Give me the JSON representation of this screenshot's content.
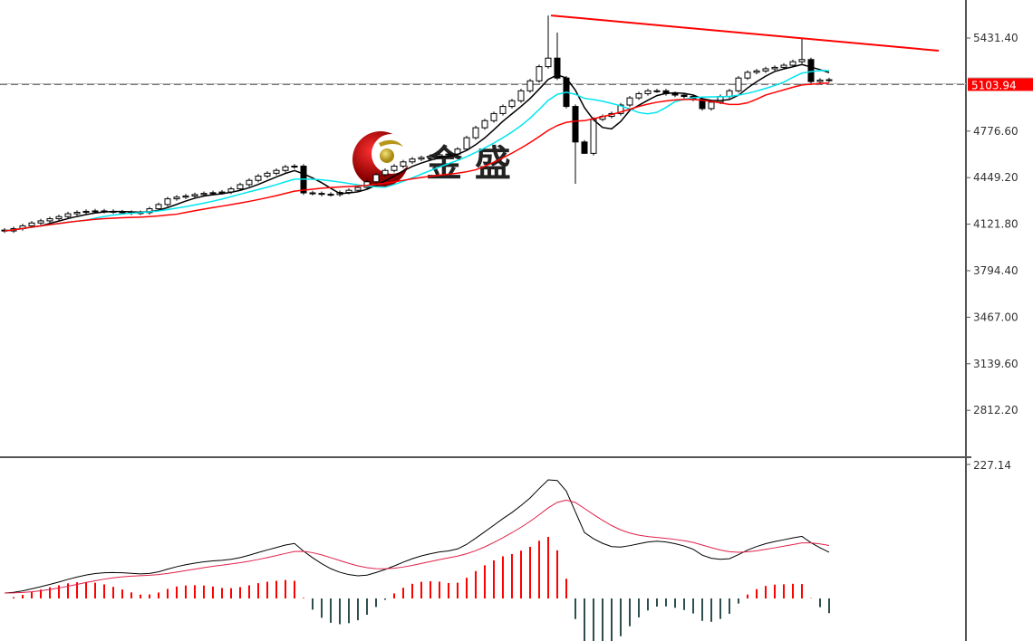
{
  "chart_data": {
    "type": "candlestick",
    "title": "",
    "price_axis": {
      "ticks": [
        "5431.40",
        "4776.60",
        "4449.20",
        "4121.80",
        "3794.40",
        "3467.00",
        "3139.60",
        "2812.20"
      ],
      "tick_values": [
        5431.4,
        4776.6,
        4449.2,
        4121.8,
        3794.4,
        3467.0,
        3139.6,
        2812.2
      ],
      "current_price_label": "5103.94",
      "current_price": 5103.94,
      "ask_price": 5110
    },
    "closes": [
      4074,
      4090,
      4110,
      4130,
      4145,
      4160,
      4175,
      4195,
      4205,
      4212,
      4215,
      4212,
      4208,
      4205,
      4200,
      4203,
      4230,
      4260,
      4300,
      4312,
      4320,
      4330,
      4338,
      4343,
      4348,
      4370,
      4400,
      4430,
      4460,
      4480,
      4500,
      4525,
      4530,
      4342,
      4338,
      4332,
      4330,
      4345,
      4360,
      4380,
      4420,
      4470,
      4500,
      4530,
      4560,
      4580,
      4590,
      4600,
      4610,
      4615,
      4650,
      4730,
      4800,
      4850,
      4900,
      4950,
      4990,
      5060,
      5130,
      5230,
      5290,
      5150,
      4950,
      4700,
      4620,
      4860,
      4880,
      4900,
      4960,
      5010,
      5040,
      5060,
      5060,
      5040,
      5030,
      5020,
      5000,
      4935,
      4980,
      5020,
      5060,
      5150,
      5190,
      5200,
      5215,
      5225,
      5240,
      5265,
      5280,
      5125,
      5135,
      5138
    ],
    "first_open": 4080,
    "wick_extremes": {
      "60": {
        "high": 5590
      },
      "61": {
        "high": 5470
      },
      "63": {
        "low": 4406
      },
      "64": {
        "low": 4620
      },
      "88": {
        "high": 5431
      }
    },
    "moving_averages": [
      {
        "period": 5,
        "color": "#000000"
      },
      {
        "period": 10,
        "color": "#00e5ee"
      },
      {
        "period": 20,
        "color": "#ff0000"
      }
    ],
    "trendline": {
      "from_index": 60,
      "from_price": 5590,
      "to_price": 5342,
      "color": "#ff0000"
    },
    "indicator": {
      "type": "macd",
      "top_label": "227.14",
      "fast": 12,
      "slow": 26,
      "signal": 9,
      "macd_color": "#000000",
      "signal_color": "#e0204a",
      "hist_up_color": "#ff0000",
      "hist_down_color": "#2f4f4f"
    },
    "colors": {
      "bull_body": "#ffffff",
      "bear_body": "#000000",
      "price_label_bg": "#ff0000"
    }
  },
  "watermark": {
    "text": "金 盛"
  }
}
